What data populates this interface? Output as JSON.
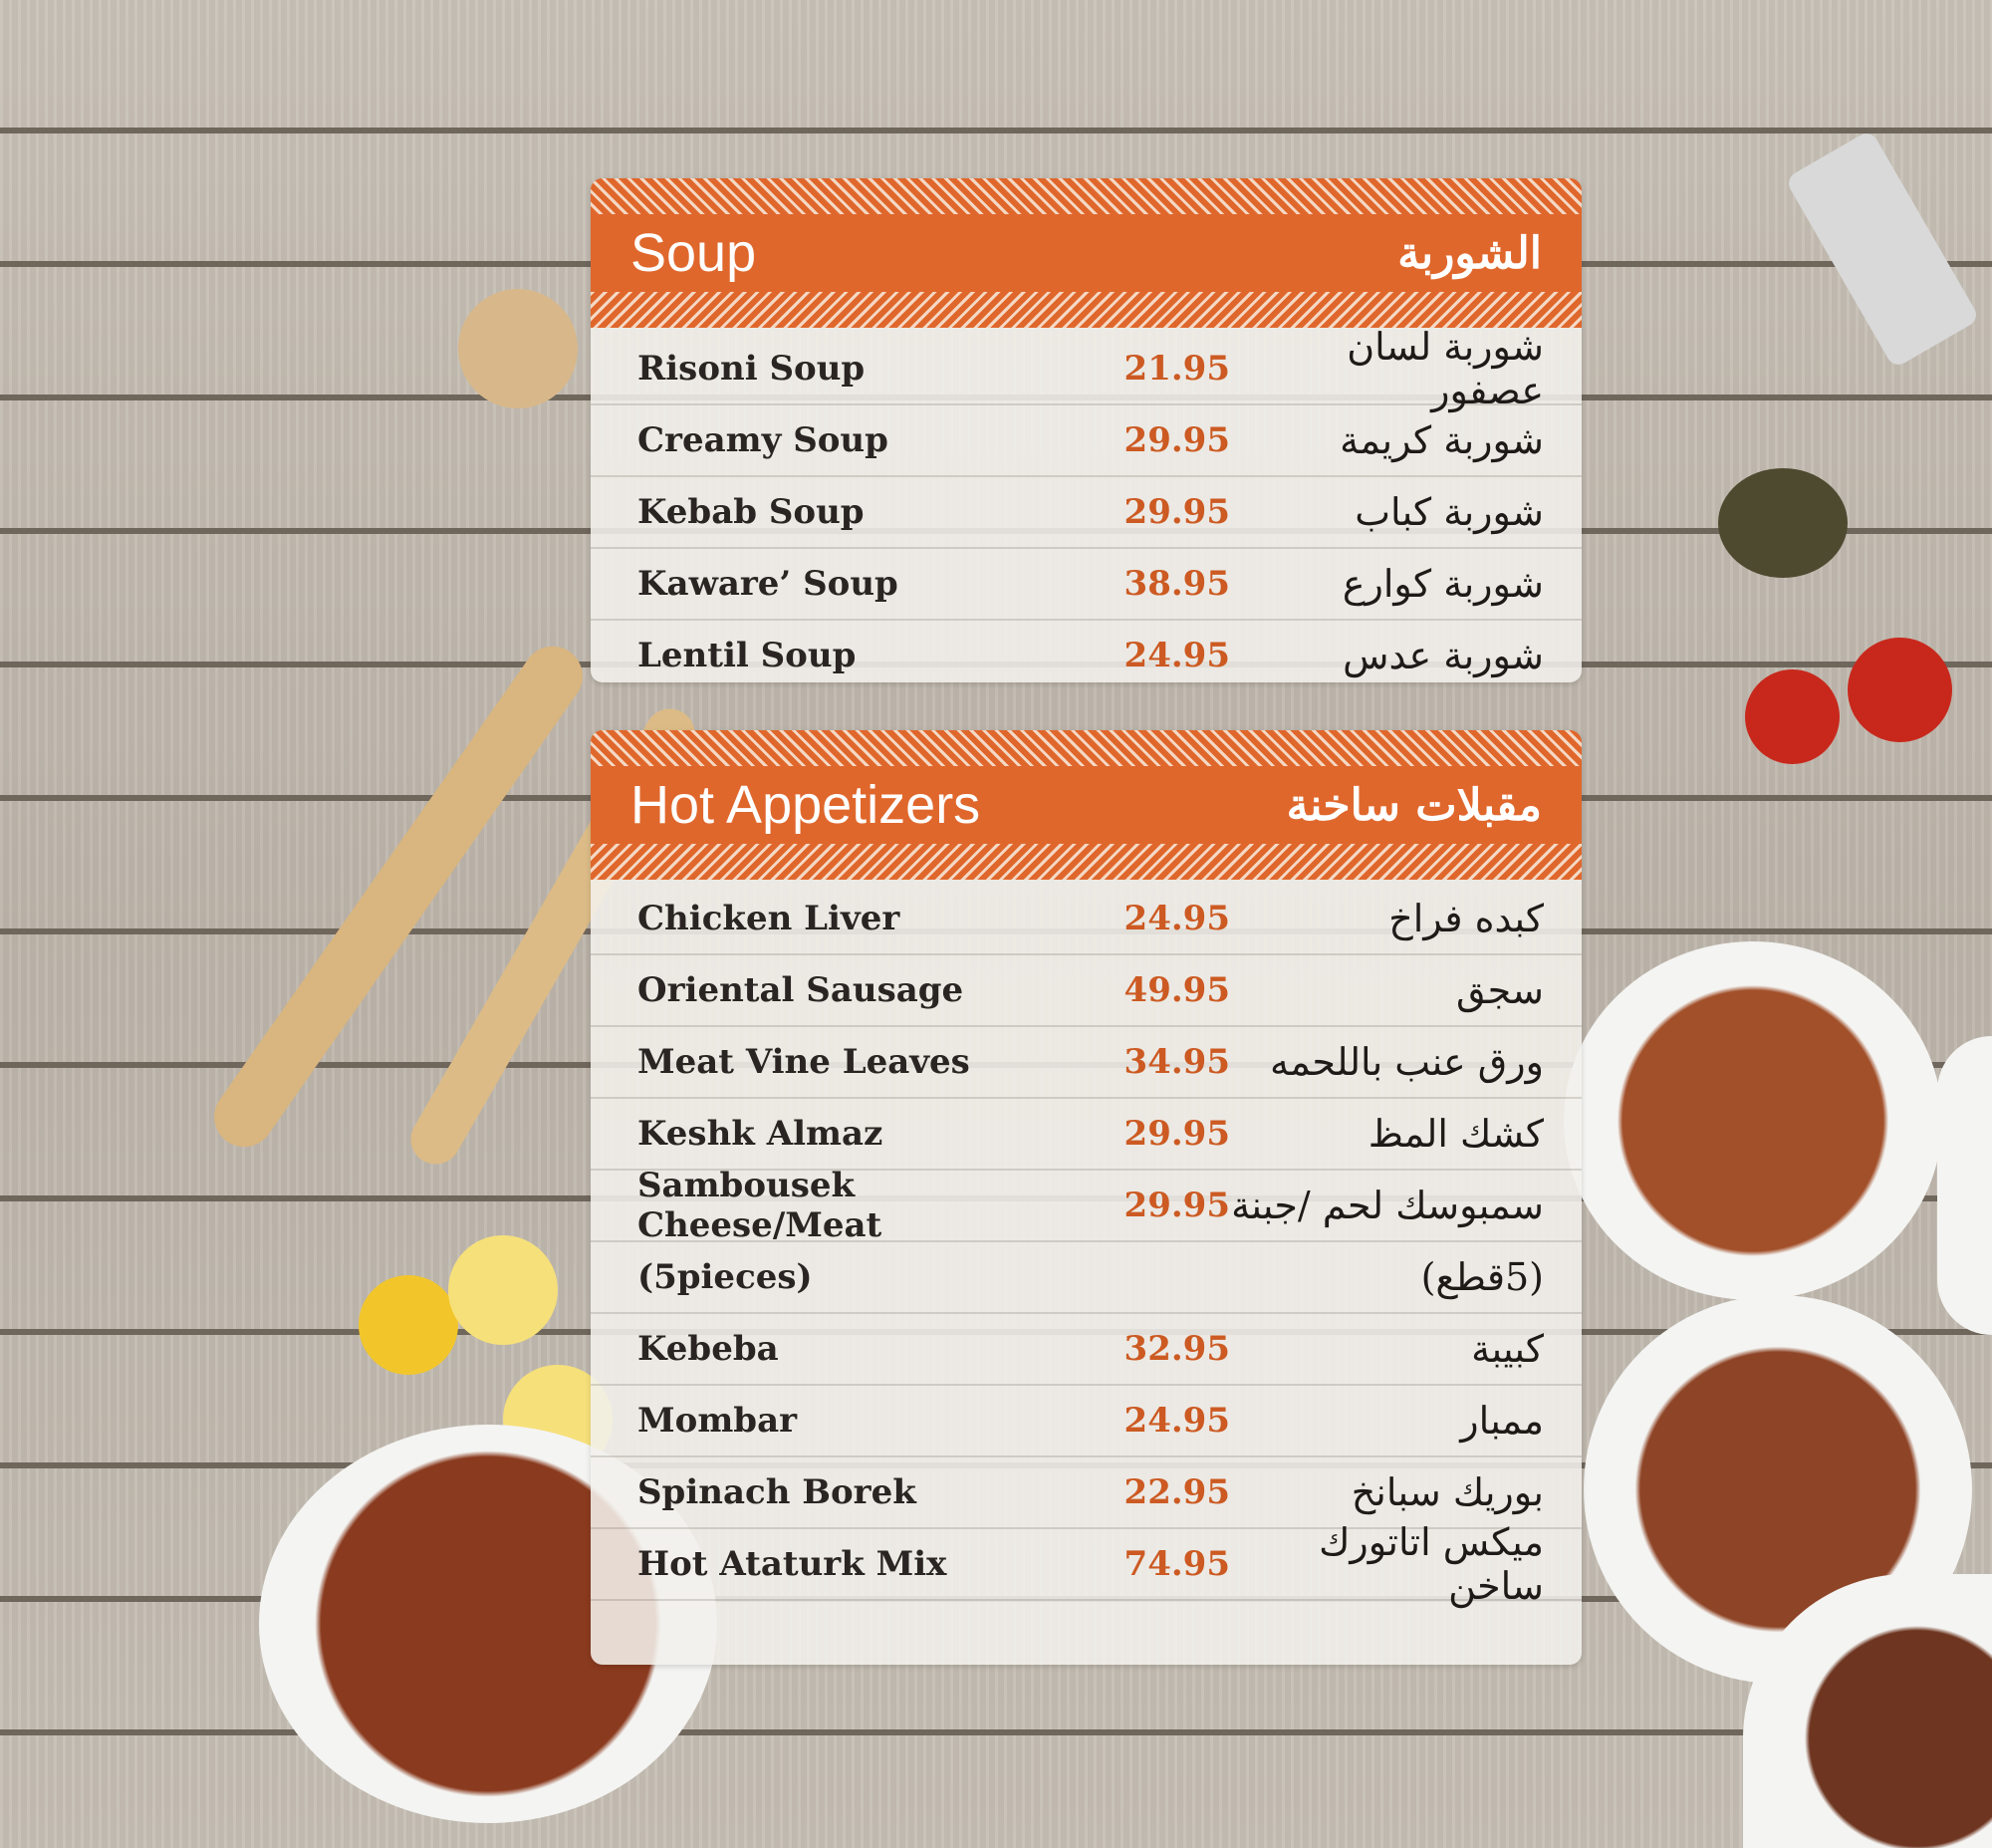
{
  "colors": {
    "accent": "#e0672c",
    "price": "#cc5a22"
  },
  "sections": [
    {
      "title_en": "Soup",
      "title_ar": "الشوربة",
      "items": [
        {
          "name": "Risoni Soup",
          "price": "21.95",
          "ar": "شوربة لسان عصفور"
        },
        {
          "name": "Creamy Soup",
          "price": "29.95",
          "ar": "شوربة كريمة"
        },
        {
          "name": "Kebab Soup",
          "price": "29.95",
          "ar": "شوربة كباب"
        },
        {
          "name": "Kaware’ Soup",
          "price": "38.95",
          "ar": "شوربة كوارع"
        },
        {
          "name": "Lentil Soup",
          "price": "24.95",
          "ar": "شوربة عدس"
        }
      ]
    },
    {
      "title_en": "Hot Appetizers",
      "title_ar": "مقبلات ساخنة",
      "items": [
        {
          "name": "Chicken Liver",
          "price": "24.95",
          "ar": "كبده فراخ"
        },
        {
          "name": "Oriental Sausage",
          "price": "49.95",
          "ar": "سجق"
        },
        {
          "name": "Meat Vine Leaves",
          "price": "34.95",
          "ar": "ورق عنب باللحمه"
        },
        {
          "name": "Keshk Almaz",
          "price": "29.95",
          "ar": "كشك المظ"
        },
        {
          "name": "Sambousek Cheese/Meat",
          "price": "29.95",
          "ar": "سمبوسك لحم /جبنة"
        },
        {
          "name": "(5pieces)",
          "price": "",
          "ar": "(5قطع)"
        },
        {
          "name": "Kebeba",
          "price": "32.95",
          "ar": "كبيبة"
        },
        {
          "name": "Mombar",
          "price": "24.95",
          "ar": "ممبار"
        },
        {
          "name": "Spinach Borek",
          "price": "22.95",
          "ar": "بوريك سبانخ"
        },
        {
          "name": "Hot Ataturk Mix",
          "price": "74.95",
          "ar": "ميكس اتاتورك ساخن"
        }
      ]
    }
  ]
}
